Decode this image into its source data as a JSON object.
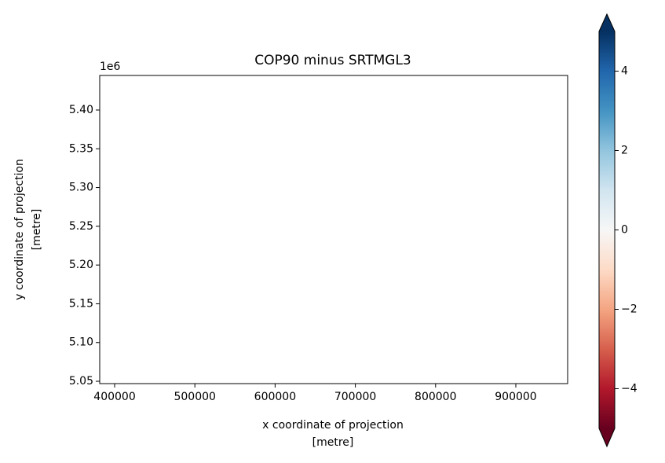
{
  "chart_data": {
    "type": "raster",
    "title": "COP90 minus SRTMGL3",
    "xlabel": [
      "x coordinate of projection",
      "[metre]"
    ],
    "ylabel": [
      "y coordinate of projection",
      "[metre]"
    ],
    "y_offset_label": "1e6",
    "xlim": [
      381400,
      964600
    ],
    "xticks": [
      400000,
      500000,
      600000,
      700000,
      800000,
      900000
    ],
    "ylim": [
      5.047,
      5.4446
    ],
    "yticks": [
      {
        "value": 5.05,
        "label": "5.05"
      },
      {
        "value": 5.1,
        "label": "5.10"
      },
      {
        "value": 5.15,
        "label": "5.15"
      },
      {
        "value": 5.2,
        "label": "5.20"
      },
      {
        "value": 5.25,
        "label": "5.25"
      },
      {
        "value": 5.3,
        "label": "5.30"
      },
      {
        "value": 5.35,
        "label": "5.35"
      },
      {
        "value": 5.4,
        "label": "5.40"
      }
    ],
    "colorbar": {
      "clim": [
        -5,
        5
      ],
      "extend": "both",
      "ticks": [
        {
          "value": -4,
          "label": "−4"
        },
        {
          "value": -2,
          "label": "−2"
        },
        0,
        2,
        4
      ],
      "colormap": [
        "#67001f",
        "#b2182b",
        "#d6604d",
        "#f4a582",
        "#fddbc7",
        "#f7f7f7",
        "#d1e5f0",
        "#92c5de",
        "#4393c3",
        "#2166ac",
        "#053061"
      ]
    }
  }
}
